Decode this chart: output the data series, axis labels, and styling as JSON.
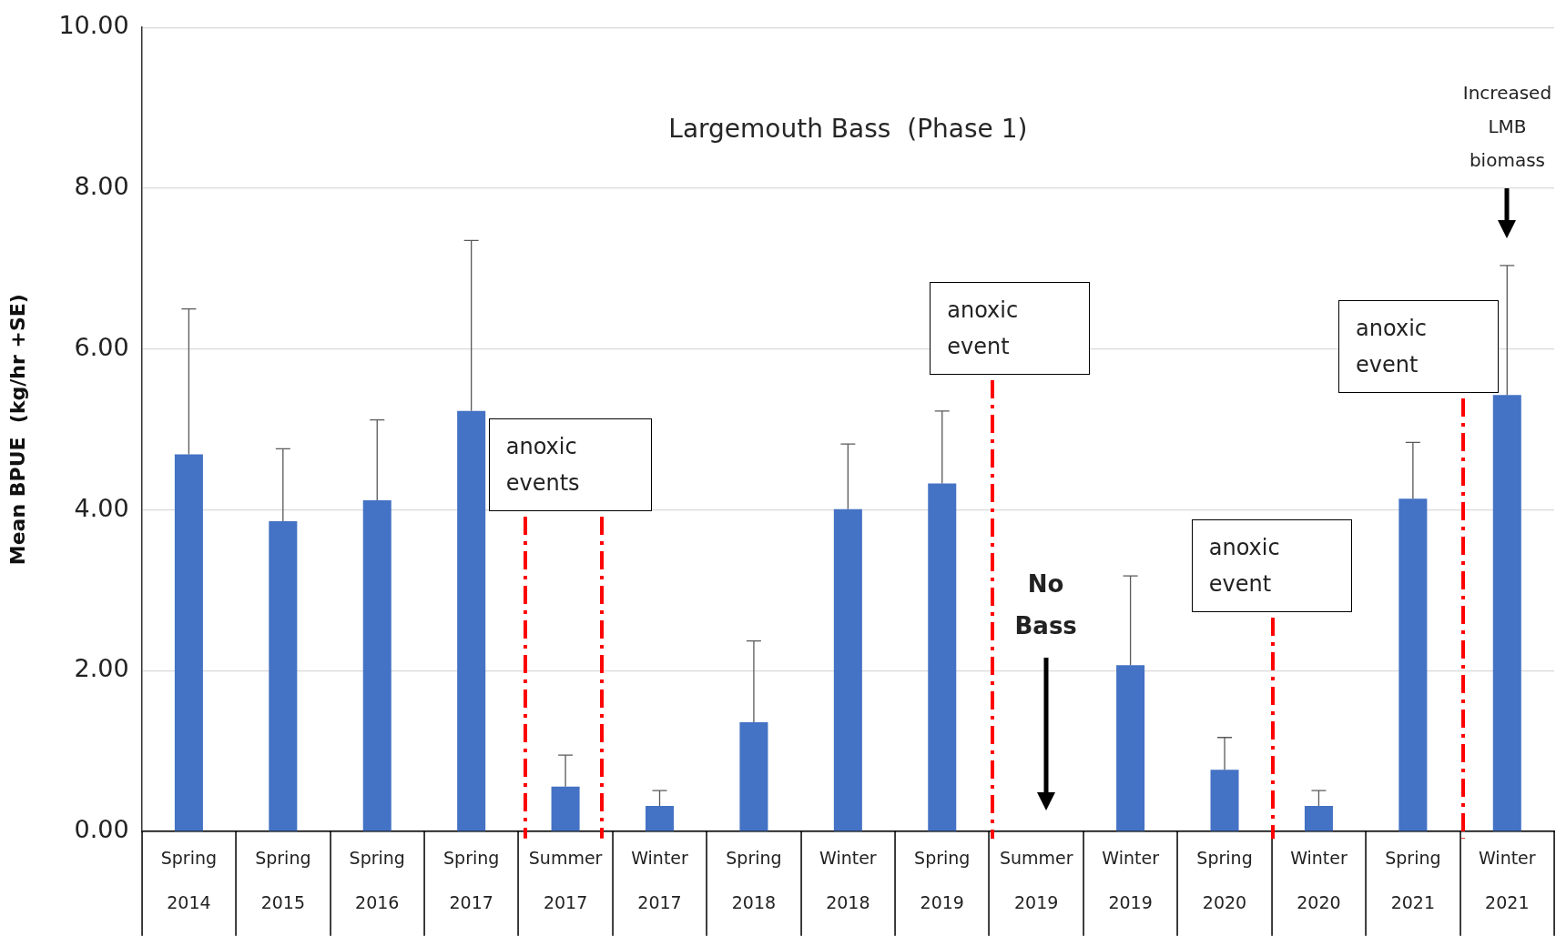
{
  "chart_data": {
    "type": "bar",
    "title": "Largemouth Bass  (Phase 1)",
    "ylabel": "Mean BPUE  (kg/hr +SE)",
    "categories": [
      "Spring 2014",
      "Spring 2015",
      "Spring 2016",
      "Spring 2017",
      "Summer 2017",
      "Winter 2017",
      "Spring 2018",
      "Winter 2018",
      "Spring 2019",
      "Summer 2019",
      "Winter 2019",
      "Spring 2020",
      "Winter 2020",
      "Spring 2021",
      "Winter 2021"
    ],
    "values": [
      4.69,
      3.86,
      4.12,
      5.23,
      0.56,
      0.32,
      1.36,
      4.01,
      4.33,
      null,
      2.07,
      0.77,
      0.32,
      4.14,
      5.43
    ],
    "errors": [
      [
        4.69,
        6.5
      ],
      [
        3.86,
        4.76
      ],
      [
        4.12,
        5.12
      ],
      [
        5.23,
        7.35
      ],
      [
        0.56,
        0.95
      ],
      [
        0.32,
        0.51
      ],
      [
        1.36,
        2.37
      ],
      [
        4.01,
        4.82
      ],
      [
        4.33,
        5.23
      ],
      null,
      [
        2.07,
        3.18
      ],
      [
        0.77,
        1.17
      ],
      [
        0.32,
        0.51
      ],
      [
        4.14,
        4.84
      ],
      [
        5.43,
        7.04
      ]
    ],
    "color": "#4472c4",
    "ylim": [
      0,
      10
    ],
    "yticks": [
      {
        "value": 0,
        "label": "0.00"
      },
      {
        "value": 2,
        "label": "2.00"
      },
      {
        "value": 4,
        "label": "4.00"
      },
      {
        "value": 6,
        "label": "6.00"
      },
      {
        "value": 8,
        "label": "8.00"
      },
      {
        "value": 10,
        "label": "10.00"
      }
    ],
    "grid": "y",
    "legend": false,
    "annotations": [
      "anoxic events",
      "anoxic event",
      "anoxic event",
      "anoxic event",
      "No Bass",
      "Increased LMB biomass"
    ]
  }
}
